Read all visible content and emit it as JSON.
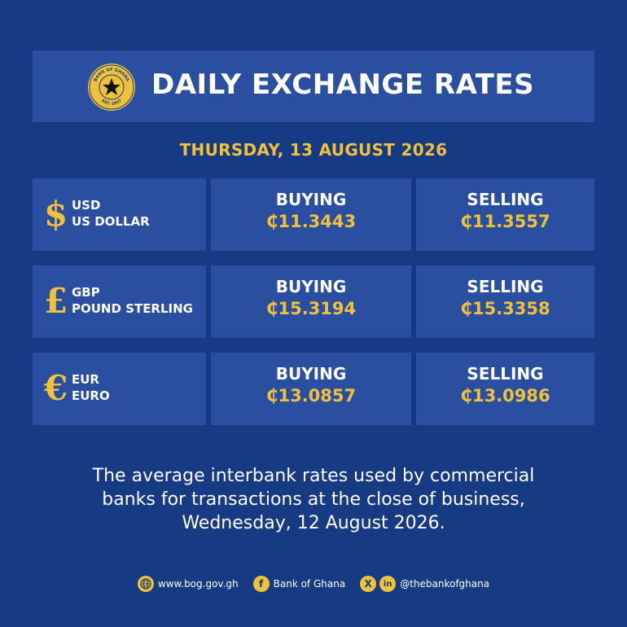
{
  "header": {
    "title": "DAILY EXCHANGE RATES",
    "seal_top_text": "BANK OF GHANA",
    "seal_bottom_text": "EST. 1957"
  },
  "date": "THURSDAY, 13 AUGUST 2026",
  "rates": [
    {
      "symbol": "$",
      "code": "USD",
      "name": "US DOLLAR",
      "buying_label": "BUYING",
      "buying": "₵11.3443",
      "selling_label": "SELLING",
      "selling": "₵11.3557"
    },
    {
      "symbol": "£",
      "code": "GBP",
      "name": "POUND STERLING",
      "buying_label": "BUYING",
      "buying": "₵15.3194",
      "selling_label": "SELLING",
      "selling": "₵15.3358"
    },
    {
      "symbol": "€",
      "code": "EUR",
      "name": "EURO",
      "buying_label": "BUYING",
      "buying": "₵13.0857",
      "selling_label": "SELLING",
      "selling": "₵13.0986"
    }
  ],
  "footnote": {
    "line1": "The average interbank rates used by commercial",
    "line2": "banks for transactions at the close of business,",
    "line3": "Wednesday, 12 August 2026."
  },
  "footer": {
    "website": "www.bog.gov.gh",
    "facebook": "Bank of Ghana",
    "handle": "@thebankofghana",
    "icons": [
      "globe-icon",
      "facebook-icon",
      "x-icon",
      "linkedin-icon"
    ]
  },
  "colors": {
    "background": "#163a83",
    "panel": "#2a4fa0",
    "accent": "#f0c23c",
    "text": "#ffffff"
  }
}
